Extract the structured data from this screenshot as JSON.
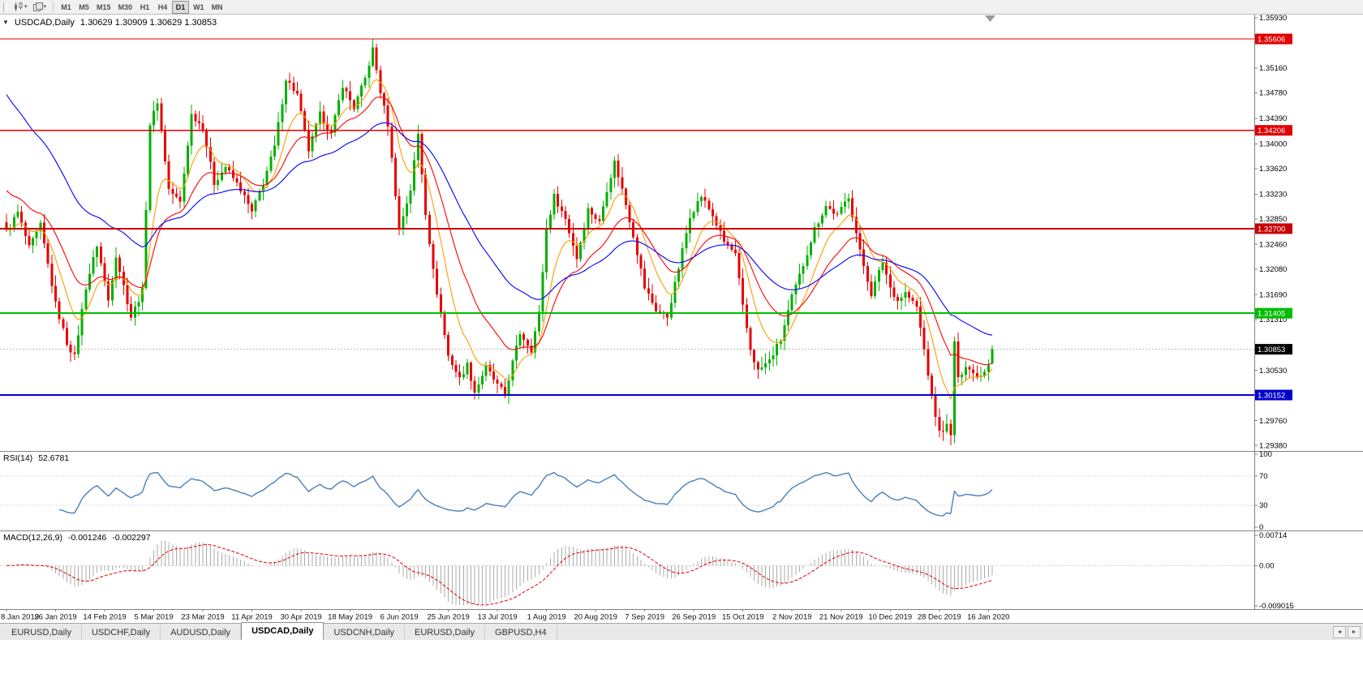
{
  "toolbar": {
    "timeframes": [
      "M1",
      "M5",
      "M15",
      "M30",
      "H1",
      "H4",
      "D1",
      "W1",
      "MN"
    ],
    "active_timeframe": "D1",
    "dropdown_glyph": "▾"
  },
  "title": {
    "dropdown_glyph": "▼",
    "symbol": "USDCAD,Daily",
    "ohlc": "1.30629 1.30909 1.30629 1.30853"
  },
  "chart_data": {
    "type": "candlestick",
    "symbol": "USDCAD",
    "timeframe": "Daily",
    "last_ohlc": {
      "open": 1.30629,
      "high": 1.30909,
      "low": 1.30629,
      "close": 1.30853
    },
    "price_axis": {
      "pmax": 1.35979,
      "pixels_per_unit": 8049,
      "ticks": [
        "1.35930",
        "1.35550",
        "1.35160",
        "1.34780",
        "1.34390",
        "1.34000",
        "1.33620",
        "1.33230",
        "1.32850",
        "1.32460",
        "1.32080",
        "1.31690",
        "1.31310",
        "1.30920",
        "1.30530",
        "1.30150",
        "1.29760",
        "1.29380"
      ]
    },
    "hlines": [
      {
        "price": 1.35606,
        "label": "1.35606",
        "color": "#e00000",
        "width": 1.4
      },
      {
        "price": 1.34206,
        "label": "1.34206",
        "color": "#e00000",
        "width": 1.4
      },
      {
        "price": 1.327,
        "label": "1.32700",
        "color": "#c80000",
        "width": 2
      },
      {
        "price": 1.31405,
        "label": "1.31405",
        "color": "#00bd00",
        "width": 2
      },
      {
        "price": 1.30152,
        "label": "1.30152",
        "color": "#0000cc",
        "width": 2.4
      }
    ],
    "current_price": {
      "value": 1.30853,
      "label": "1.30853",
      "badge_color": "#000000"
    },
    "dates": [
      "8 Jan 2019",
      "26 Jan 2019",
      "14 Feb 2019",
      "5 Mar 2019",
      "23 Mar 2019",
      "11 Apr 2019",
      "30 Apr 2019",
      "18 May 2019",
      "6 Jun 2019",
      "25 Jun 2019",
      "13 Jul 2019",
      "1 Aug 2019",
      "20 Aug 2019",
      "7 Sep 2019",
      "26 Sep 2019",
      "15 Oct 2019",
      "2 Nov 2019",
      "21 Nov 2019",
      "10 Dec 2019",
      "28 Dec 2019",
      "16 Jan 2020"
    ],
    "candle_count": 262,
    "candles_per_date_label": 13,
    "close_anchors": [
      [
        0,
        1.3265
      ],
      [
        3,
        1.3295
      ],
      [
        6,
        1.324
      ],
      [
        9,
        1.3275
      ],
      [
        13,
        1.3155
      ],
      [
        16,
        1.3095
      ],
      [
        18,
        1.3074
      ],
      [
        21,
        1.318
      ],
      [
        24,
        1.3245
      ],
      [
        27,
        1.316
      ],
      [
        29,
        1.323
      ],
      [
        33,
        1.3135
      ],
      [
        36,
        1.3175
      ],
      [
        38,
        1.343
      ],
      [
        40,
        1.3465
      ],
      [
        43,
        1.333
      ],
      [
        46,
        1.331
      ],
      [
        49,
        1.3445
      ],
      [
        52,
        1.3425
      ],
      [
        55,
        1.334
      ],
      [
        58,
        1.3365
      ],
      [
        62,
        1.333
      ],
      [
        65,
        1.3295
      ],
      [
        68,
        1.334
      ],
      [
        71,
        1.3395
      ],
      [
        74,
        1.35
      ],
      [
        77,
        1.3475
      ],
      [
        80,
        1.339
      ],
      [
        83,
        1.3445
      ],
      [
        86,
        1.3415
      ],
      [
        89,
        1.349
      ],
      [
        92,
        1.3455
      ],
      [
        95,
        1.35
      ],
      [
        97,
        1.3545
      ],
      [
        99,
        1.348
      ],
      [
        101,
        1.343
      ],
      [
        104,
        1.327
      ],
      [
        107,
        1.333
      ],
      [
        109,
        1.3415
      ],
      [
        111,
        1.3295
      ],
      [
        113,
        1.3205
      ],
      [
        115,
        1.314
      ],
      [
        117,
        1.3075
      ],
      [
        120,
        1.304
      ],
      [
        122,
        1.3062
      ],
      [
        124,
        1.302
      ],
      [
        127,
        1.3058
      ],
      [
        130,
        1.303
      ],
      [
        132,
        1.3016
      ],
      [
        134,
        1.3065
      ],
      [
        136,
        1.311
      ],
      [
        139,
        1.3085
      ],
      [
        141,
        1.314
      ],
      [
        143,
        1.327
      ],
      [
        145,
        1.332
      ],
      [
        148,
        1.3285
      ],
      [
        151,
        1.3225
      ],
      [
        154,
        1.33
      ],
      [
        157,
        1.328
      ],
      [
        159,
        1.333
      ],
      [
        161,
        1.3372
      ],
      [
        163,
        1.333
      ],
      [
        166,
        1.326
      ],
      [
        169,
        1.318
      ],
      [
        172,
        1.3145
      ],
      [
        175,
        1.3135
      ],
      [
        178,
        1.321
      ],
      [
        181,
        1.329
      ],
      [
        184,
        1.332
      ],
      [
        187,
        1.329
      ],
      [
        190,
        1.325
      ],
      [
        193,
        1.323
      ],
      [
        195,
        1.315
      ],
      [
        197,
        1.3085
      ],
      [
        199,
        1.3052
      ],
      [
        202,
        1.3068
      ],
      [
        205,
        1.31
      ],
      [
        208,
        1.3165
      ],
      [
        211,
        1.3215
      ],
      [
        214,
        1.327
      ],
      [
        217,
        1.3305
      ],
      [
        220,
        1.329
      ],
      [
        223,
        1.332
      ],
      [
        226,
        1.3235
      ],
      [
        229,
        1.317
      ],
      [
        232,
        1.322
      ],
      [
        234,
        1.318
      ],
      [
        236,
        1.316
      ],
      [
        238,
        1.3172
      ],
      [
        241,
        1.315
      ],
      [
        243,
        1.3085
      ],
      [
        245,
        1.301
      ],
      [
        247,
        1.2958
      ],
      [
        249,
        1.2968
      ],
      [
        250,
        1.2952
      ],
      [
        251,
        1.3098
      ],
      [
        252,
        1.3038
      ],
      [
        254,
        1.3062
      ],
      [
        256,
        1.3048
      ],
      [
        258,
        1.3045
      ],
      [
        260,
        1.3063
      ],
      [
        261,
        1.30853
      ]
    ],
    "spike": {
      "index": 97,
      "high": 1.356
    },
    "colors": {
      "up": "#00b000",
      "down": "#e80000",
      "current_line": "#b8b8b8"
    },
    "moving_averages": [
      {
        "name": "ma-fast",
        "period": 9,
        "color": "#ff9c00",
        "init": null
      },
      {
        "name": "ma-mid",
        "period": 20,
        "color": "#ff0000",
        "init": 1.3335
      },
      {
        "name": "ma-slow",
        "period": 45,
        "color": "#0000ff",
        "init": 1.3485
      }
    ],
    "indicators": {
      "rsi": {
        "name": "RSI(14)",
        "period": 14,
        "value": "52.6781",
        "color": "#4a7ebb",
        "levels": [
          {
            "v": 100,
            "label": "100"
          },
          {
            "v": 70,
            "label": "70"
          },
          {
            "v": 30,
            "label": "30"
          },
          {
            "v": 0,
            "label": "0"
          }
        ],
        "dotted_levels": [
          70,
          30
        ]
      },
      "macd": {
        "name": "MACD(12,26,9)",
        "fast": 12,
        "slow": 26,
        "signal": 9,
        "value_main": "-0.001246",
        "value_signal": "-0.002297",
        "hist_color": "#ababab",
        "signal_color": "#e00000",
        "axis": [
          {
            "v": 0.00714,
            "label": "0.00714"
          },
          {
            "v": 0,
            "label": "0.00"
          },
          {
            "v": -0.009015,
            "label": "-0.009015"
          }
        ]
      }
    }
  },
  "tabs": [
    {
      "label": "EURUSD,Daily",
      "active": false
    },
    {
      "label": "USDCHF,Daily",
      "active": false
    },
    {
      "label": "AUDUSD,Daily",
      "active": false
    },
    {
      "label": "USDCAD,Daily",
      "active": true
    },
    {
      "label": "USDCNH,Daily",
      "active": false
    },
    {
      "label": "EURUSD,Daily",
      "active": false
    },
    {
      "label": "GBPUSD,H4",
      "active": false
    }
  ],
  "tab_nav": {
    "left": "◄",
    "right": "►"
  }
}
